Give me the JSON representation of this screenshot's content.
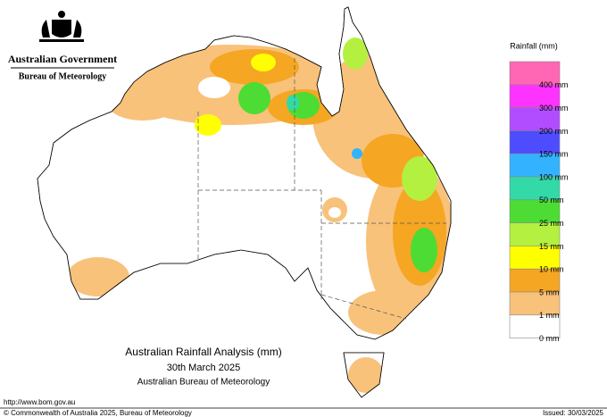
{
  "header": {
    "government": "Australian Government",
    "agency": "Bureau of Meteorology"
  },
  "legend": {
    "title": "Rainfall (mm)",
    "colors": [
      "#ff66b3",
      "#ff33ff",
      "#b24dff",
      "#4d4dff",
      "#33b3ff",
      "#33d9a6",
      "#4ddc33",
      "#b3f040",
      "#ffff00",
      "#f5a623",
      "#f8c27a",
      "#ffffff"
    ],
    "labels": [
      "400 mm",
      "300 mm",
      "200 mm",
      "150 mm",
      "100 mm",
      "50 mm",
      "25 mm",
      "15 mm",
      "10 mm",
      "5 mm",
      "1 mm",
      "0 mm"
    ]
  },
  "map_title": {
    "line1": "Australian Rainfall Analysis (mm)",
    "line2": "30th March 2025",
    "line3": "Australian Bureau of Meteorology"
  },
  "footer": {
    "url": "http://www.bom.gov.au",
    "copyright": "© Commonwealth of Australia 2025, Bureau of Meteorology",
    "issued": "Issued: 30/03/2025"
  }
}
